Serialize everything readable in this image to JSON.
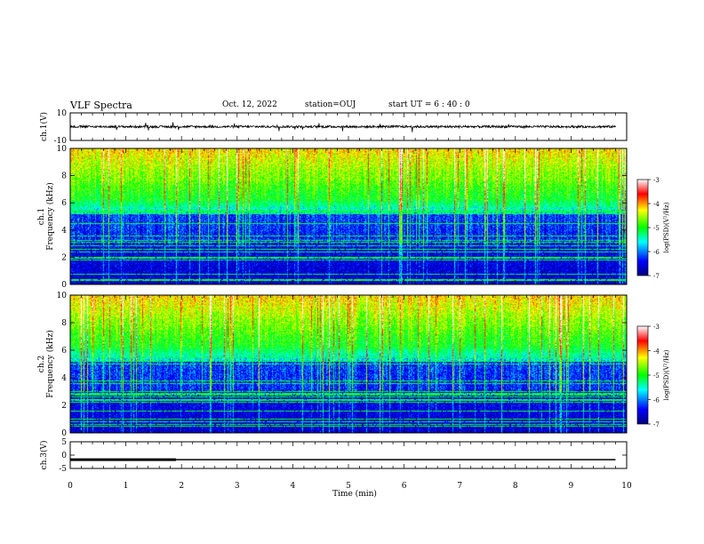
{
  "header": {
    "title": "VLF Spectra",
    "date": "Oct. 12, 2022",
    "station": "station=OUJ",
    "start": "start  UT =   6 : 40 : 0"
  },
  "colors": {
    "colormap": [
      "#000080",
      "#0000ff",
      "#00ffff",
      "#00ff00",
      "#ffff00",
      "#ff0000",
      "#ffffff"
    ]
  },
  "chart_data": [
    {
      "type": "line",
      "panel": "waveform",
      "ylabel": "ch.1(V)",
      "ylim": [
        -10,
        10
      ],
      "yticks": [
        "10",
        "-10"
      ],
      "baseline": 0
    },
    {
      "type": "heatmap",
      "panel": "spectrogram-ch1",
      "ylabel": "ch.1\nFrequency (kHz)",
      "ylim": [
        0,
        10
      ],
      "yticks": [
        "0",
        "2",
        "4",
        "6",
        "8",
        "10"
      ],
      "colorbar": {
        "label": "log(PSD)(V²/Hz)",
        "range": [
          -7,
          -3
        ],
        "ticks": [
          "-3",
          "-4",
          "-5",
          "-6",
          "-7"
        ]
      }
    },
    {
      "type": "heatmap",
      "panel": "spectrogram-ch2",
      "ylabel": "ch.2\nFrequency (kHz)",
      "ylim": [
        0,
        10
      ],
      "yticks": [
        "0",
        "2",
        "4",
        "6",
        "8",
        "10"
      ],
      "colorbar": {
        "label": "log(PSD)(V²/Hz)",
        "range": [
          -7,
          -3
        ],
        "ticks": [
          "-3",
          "-4",
          "-5",
          "-6",
          "-7"
        ]
      }
    },
    {
      "type": "line",
      "panel": "ch3",
      "ylabel": "ch.3(V)",
      "ylim": [
        -5,
        5
      ],
      "yticks": [
        "5",
        "0",
        "-5"
      ],
      "series": [
        {
          "x": [
            0,
            1.9
          ],
          "y": [
            -1.7,
            -1.7
          ]
        },
        {
          "x": [
            0,
            9.8
          ],
          "y": [
            -1.7,
            -1.7
          ]
        }
      ]
    }
  ],
  "xaxis": {
    "xlabel": "Time (min)",
    "xlim": [
      0,
      10
    ],
    "ticks": [
      "0",
      "1",
      "2",
      "3",
      "4",
      "5",
      "6",
      "7",
      "8",
      "9",
      "10"
    ]
  }
}
